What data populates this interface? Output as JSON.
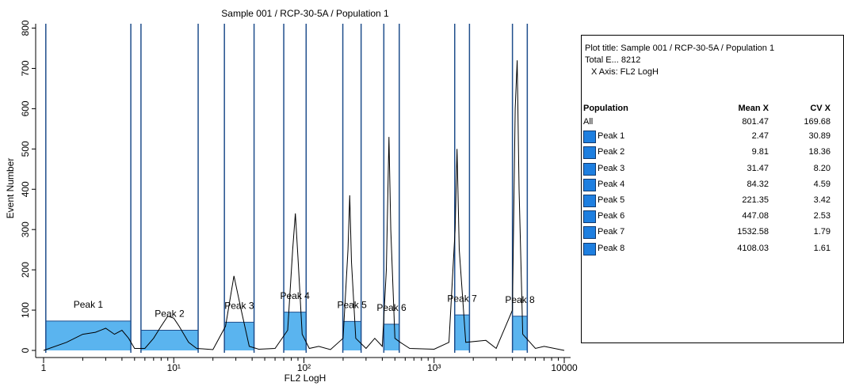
{
  "chart_data": {
    "type": "line",
    "title": "Sample 001 / RCP-30-5A / Population 1",
    "xlabel": "FL2 LogH",
    "ylabel": "Event Number",
    "log_x": true,
    "xlim": [
      1,
      10000
    ],
    "ylim": [
      0,
      805
    ],
    "xticks": [
      1,
      {
        "value": 10,
        "label": "10¹"
      },
      {
        "value": 100,
        "label": "10²"
      },
      {
        "value": 1000,
        "label": "10³"
      },
      10000
    ],
    "yticks": [
      0,
      100,
      200,
      300,
      400,
      500,
      600,
      700,
      800
    ],
    "color": "#000000",
    "x": [
      1,
      1.5,
      2,
      2.5,
      3,
      3.5,
      4,
      4.5,
      5,
      6,
      7,
      8,
      9,
      10,
      11,
      13,
      15,
      20,
      25,
      29,
      33,
      38,
      45,
      60,
      75,
      82,
      86,
      90,
      97,
      110,
      130,
      160,
      200,
      218,
      225,
      232,
      250,
      300,
      350,
      400,
      430,
      450,
      465,
      500,
      550,
      650,
      1000,
      1300,
      1450,
      1500,
      1560,
      1750,
      2500,
      3000,
      4000,
      4200,
      4350,
      4500,
      4800,
      6000,
      7000,
      10000
    ],
    "values": [
      0,
      20,
      40,
      45,
      55,
      40,
      50,
      30,
      5,
      5,
      30,
      60,
      85,
      80,
      60,
      20,
      5,
      2,
      60,
      185,
      100,
      10,
      3,
      5,
      50,
      250,
      340,
      230,
      40,
      5,
      10,
      2,
      30,
      250,
      385,
      220,
      30,
      5,
      30,
      10,
      200,
      530,
      300,
      30,
      20,
      5,
      3,
      20,
      300,
      500,
      250,
      20,
      25,
      5,
      100,
      600,
      720,
      400,
      40,
      5,
      10,
      0
    ],
    "gate_color": "#5ab4ef",
    "gate_edge": "#1f4e8c",
    "gates": [
      {
        "name": "Peak 1",
        "range": [
          1.04,
          4.68
        ],
        "level": 73
      },
      {
        "name": "Peak 2",
        "range": [
          5.6,
          15.4
        ],
        "level": 50
      },
      {
        "name": "Peak 3",
        "range": [
          24.5,
          41.4
        ],
        "level": 70
      },
      {
        "name": "Peak 4",
        "range": [
          70,
          104
        ],
        "level": 95
      },
      {
        "name": "Peak 5",
        "range": [
          199,
          275
        ],
        "level": 72
      },
      {
        "name": "Peak 6",
        "range": [
          411,
          540
        ],
        "level": 65
      },
      {
        "name": "Peak 7",
        "range": [
          1440,
          1870
        ],
        "level": 88
      },
      {
        "name": "Peak 8",
        "range": [
          4000,
          5200
        ],
        "level": 85
      }
    ]
  },
  "stats": {
    "title_line": "Plot title: Sample 001 / RCP-30-5A / Population 1",
    "total_line": "Total E... 8212",
    "axis_line": "X Axis: FL2 LogH",
    "columns": [
      "Population",
      "Mean X",
      "CV X"
    ],
    "rows": [
      [
        "All",
        "801.47",
        "169.68"
      ],
      [
        "Peak 1",
        "2.47",
        "30.89"
      ],
      [
        "Peak 2",
        "9.81",
        "18.36"
      ],
      [
        "Peak 3",
        "31.47",
        "8.20"
      ],
      [
        "Peak 4",
        "84.32",
        "4.59"
      ],
      [
        "Peak 5",
        "221.35",
        "3.42"
      ],
      [
        "Peak 6",
        "447.08",
        "2.53"
      ],
      [
        "Peak 7",
        "1532.58",
        "1.79"
      ],
      [
        "Peak 8",
        "4108.03",
        "1.61"
      ]
    ]
  }
}
